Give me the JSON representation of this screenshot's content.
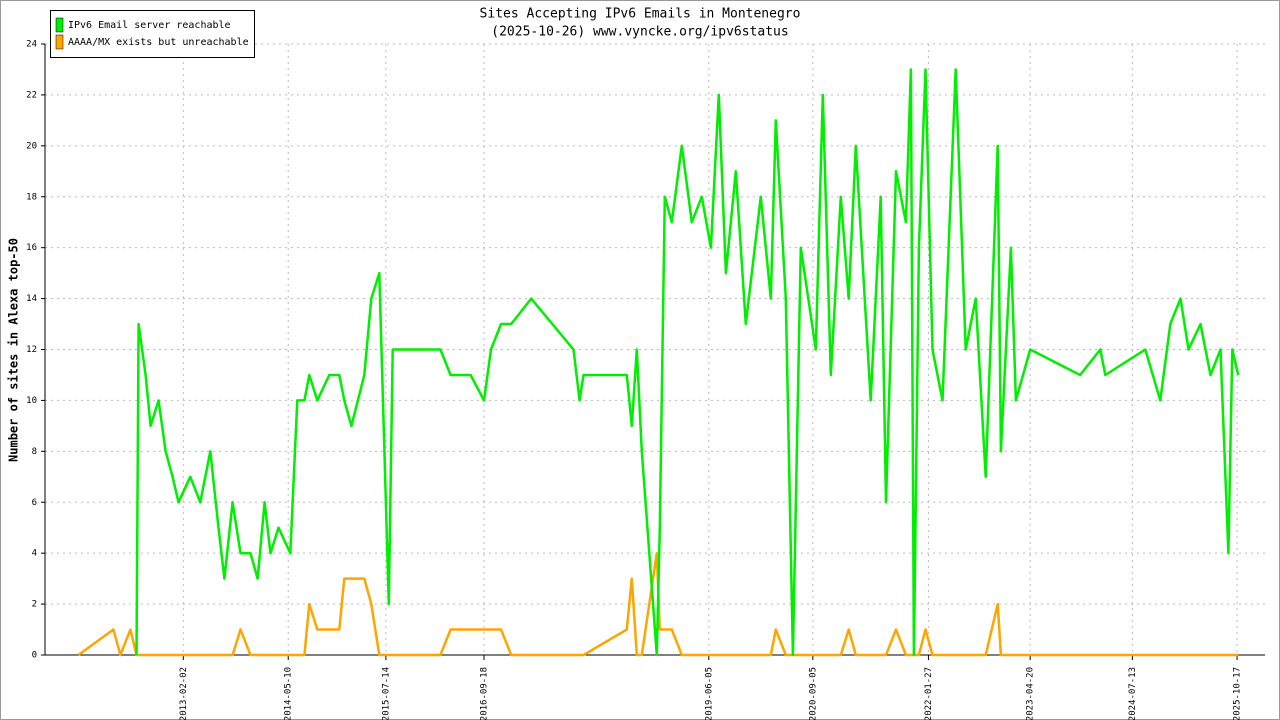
{
  "chart_data": {
    "type": "line",
    "title": "Sites Accepting IPv6 Emails in Montenegro",
    "subtitle": "(2025-10-26) www.vyncke.org/ipv6status",
    "y_label": "Number of sites in Alexa top-50",
    "legend": "upper left",
    "grid": true,
    "xlim": [
      "2011-06-04",
      "2026-02-17"
    ],
    "xticks": [
      "2013-02-02",
      "2014-05-10",
      "2015-07-14",
      "2016-09-18",
      "2019-06-05",
      "2020-09-05",
      "2022-01-27",
      "2023-04-20",
      "2024-07-13",
      "2025-10-17"
    ],
    "ylim": [
      0,
      24
    ],
    "yticks": [
      0,
      2,
      4,
      6,
      8,
      10,
      12,
      14,
      16,
      18,
      20,
      22,
      24
    ],
    "x": [
      "2011-10-29",
      "2012-03-31",
      "2012-05-01",
      "2012-06-14",
      "2012-07-11",
      "2012-07-20",
      "2012-08-20",
      "2012-09-11",
      "2012-10-16",
      "2012-11-16",
      "2012-12-17",
      "2013-01-12",
      "2013-03-05",
      "2013-04-18",
      "2013-06-01",
      "2013-07-07",
      "2013-08-02",
      "2013-09-07",
      "2013-10-12",
      "2013-11-25",
      "2013-12-26",
      "2014-01-26",
      "2014-02-21",
      "2014-03-28",
      "2014-05-19",
      "2014-06-19",
      "2014-07-20",
      "2014-08-11",
      "2014-09-15",
      "2014-11-07",
      "2014-12-21",
      "2015-01-12",
      "2015-02-12",
      "2015-04-10",
      "2015-05-11",
      "2015-06-15",
      "2015-07-27",
      "2015-08-13",
      "2015-10-10",
      "2015-12-15",
      "2016-03-10",
      "2016-04-24",
      "2016-07-21",
      "2016-09-18",
      "2016-10-19",
      "2016-12-02",
      "2017-01-16",
      "2017-04-14",
      "2017-10-17",
      "2017-11-13",
      "2017-11-30",
      "2018-06-09",
      "2018-07-01",
      "2018-07-23",
      "2018-08-14",
      "2018-10-19",
      "2018-11-01",
      "2018-11-23",
      "2018-12-24",
      "2019-02-06",
      "2019-03-22",
      "2019-05-05",
      "2019-06-14",
      "2019-07-19",
      "2019-08-19",
      "2019-10-02",
      "2019-11-15",
      "2020-01-20",
      "2020-03-04",
      "2020-03-26",
      "2020-05-09",
      "2020-06-09",
      "2020-07-14",
      "2020-09-18",
      "2020-10-19",
      "2020-11-23",
      "2021-01-06",
      "2021-02-10",
      "2021-03-13",
      "2021-05-18",
      "2021-07-01",
      "2021-07-24",
      "2021-09-06",
      "2021-10-20",
      "2021-11-11",
      "2021-11-24",
      "2021-12-16",
      "2022-01-14",
      "2022-02-14",
      "2022-03-30",
      "2022-05-27",
      "2022-07-10",
      "2022-08-23",
      "2022-10-06",
      "2022-11-28",
      "2022-12-12",
      "2023-01-25",
      "2023-02-16",
      "2023-04-20",
      "2023-11-26",
      "2024-02-23",
      "2024-03-16",
      "2024-09-08",
      "2024-11-13",
      "2024-12-27",
      "2025-02-10",
      "2025-03-17",
      "2025-05-09",
      "2025-06-22",
      "2025-08-05",
      "2025-09-09",
      "2025-09-26",
      "2025-10-22"
    ],
    "series": [
      {
        "name": "IPv6 Email server reachable",
        "color": "#00ee00",
        "values": [
          null,
          null,
          null,
          null,
          0,
          13,
          11,
          9,
          10,
          8,
          7,
          6,
          7,
          6,
          8,
          5,
          3,
          6,
          4,
          4,
          3,
          6,
          4,
          5,
          4,
          10,
          10,
          11,
          10,
          11,
          11,
          10,
          9,
          11,
          14,
          15,
          2,
          12,
          12,
          12,
          12,
          11,
          11,
          10,
          12,
          13,
          13,
          14,
          12,
          10,
          11,
          11,
          9,
          12,
          8,
          0,
          5,
          18,
          17,
          20,
          17,
          18,
          16,
          22,
          15,
          19,
          13,
          18,
          14,
          21,
          14,
          0,
          16,
          12,
          22,
          11,
          18,
          14,
          20,
          10,
          18,
          6,
          19,
          17,
          23,
          0,
          16,
          23,
          12,
          10,
          23,
          12,
          14,
          7,
          20,
          8,
          16,
          10,
          12,
          11,
          12,
          11,
          12,
          10,
          13,
          14,
          12,
          13,
          11,
          12,
          4,
          12,
          11
        ]
      },
      {
        "name": "AAAA/MX exists but unreachable",
        "color": "#ffa500",
        "values": [
          0,
          1,
          0,
          1,
          0,
          0,
          0,
          0,
          0,
          0,
          0,
          0,
          0,
          0,
          0,
          0,
          0,
          0,
          1,
          0,
          0,
          0,
          0,
          0,
          0,
          0,
          0,
          2,
          1,
          1,
          1,
          3,
          3,
          3,
          2,
          0,
          0,
          0,
          0,
          0,
          0,
          1,
          1,
          1,
          1,
          1,
          0,
          0,
          0,
          0,
          0,
          1,
          3,
          0,
          0,
          4,
          1,
          1,
          1,
          0,
          0,
          0,
          0,
          0,
          0,
          0,
          0,
          0,
          0,
          1,
          0,
          0,
          0,
          0,
          0,
          0,
          0,
          1,
          0,
          0,
          0,
          0,
          1,
          0,
          0,
          0,
          0,
          1,
          0,
          0,
          0,
          0,
          0,
          0,
          2,
          0,
          0,
          0,
          0,
          0,
          0,
          0,
          0,
          0,
          0,
          0,
          0,
          0,
          0,
          0,
          0,
          0,
          0
        ]
      }
    ]
  }
}
